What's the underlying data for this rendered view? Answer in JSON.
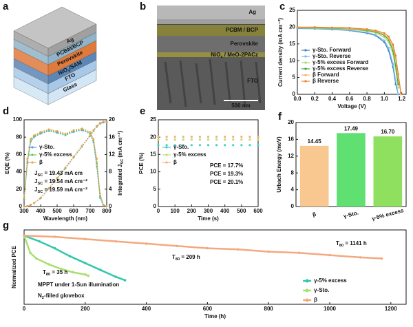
{
  "panels": {
    "a": {
      "label": "a",
      "layers": [
        "Ag",
        "PCBM/BCP",
        "Perovskite",
        [
          "NiO",
          "x",
          "/SAM"
        ],
        "FTO",
        "Glass"
      ]
    },
    "b": {
      "label": "b",
      "layers": [
        "Ag",
        "PCBM / BCP",
        "Perovskite",
        [
          "NiO",
          "x",
          " / MeO-2PACz"
        ],
        "FTO"
      ],
      "scale_bar": "500 nm"
    }
  },
  "chart_data": [
    {
      "panel_label": "c",
      "type": "line",
      "xlabel": "Voltage (V)",
      "ylabel": "Current density (mA cm⁻²)",
      "x": [
        0,
        0.2,
        0.4,
        0.6,
        0.8,
        0.9,
        1.0,
        1.05,
        1.1,
        1.13,
        1.16,
        1.19
      ],
      "xlim": [
        0,
        1.25
      ],
      "ylim": [
        0,
        25
      ],
      "xticks": [
        {
          "value": 0,
          "label": "0.0"
        },
        0.2,
        0.4,
        0.6,
        0.8,
        {
          "value": 1,
          "label": "1.0"
        },
        1.2
      ],
      "yticks": [
        0,
        5,
        10,
        15,
        20,
        25
      ],
      "legend": "lower left",
      "series": [
        {
          "name": "γ-Sto. Forward",
          "color": "#3b7fc4",
          "values": [
            19.6,
            19.5,
            19.3,
            19.0,
            18.2,
            17.5,
            15.5,
            13.0,
            8.0,
            3.0,
            0,
            null
          ]
        },
        {
          "name": "γ-Sto. Reverse",
          "color": "#7ab8e8",
          "values": [
            19.7,
            19.6,
            19.4,
            19.1,
            18.4,
            17.7,
            16.0,
            13.8,
            9.0,
            4.0,
            0,
            null
          ]
        },
        {
          "name": "γ-5% excess Forward",
          "color": "#a6d96a",
          "values": [
            19.8,
            19.7,
            19.6,
            19.4,
            18.8,
            18.3,
            17.0,
            15.5,
            12.0,
            7.5,
            2.0,
            null
          ]
        },
        {
          "name": "γ-5% excess Reverse",
          "color": "#3aa845",
          "values": [
            19.9,
            19.8,
            19.7,
            19.5,
            19.0,
            18.6,
            17.5,
            16.2,
            13.0,
            8.5,
            3.0,
            null
          ]
        },
        {
          "name": "β Forward",
          "color": "#f6b26b",
          "values": [
            19.9,
            19.9,
            19.8,
            19.6,
            19.2,
            18.8,
            17.8,
            16.6,
            14.0,
            10.5,
            5.0,
            0
          ]
        },
        {
          "name": "β Reverse",
          "color": "#e8822a",
          "values": [
            20.0,
            20.0,
            19.9,
            19.8,
            19.4,
            19.0,
            18.2,
            17.2,
            14.8,
            11.5,
            6.0,
            0.5
          ]
        }
      ]
    },
    {
      "panel_label": "d",
      "type": "line",
      "xlabel": "Wavelength (nm)",
      "ylabel": "EQE (%)",
      "y2label": [
        "Integrated J",
        "SC",
        " (mA cm⁻²)"
      ],
      "x": [
        300,
        320,
        340,
        360,
        400,
        450,
        500,
        550,
        600,
        650,
        700,
        720,
        740,
        760,
        780,
        800
      ],
      "xlim": [
        300,
        800
      ],
      "ylim": [
        0,
        100
      ],
      "y2lim": [
        0,
        20
      ],
      "xticks": [
        300,
        400,
        500,
        600,
        700,
        800
      ],
      "yticks": [
        0,
        20,
        40,
        60,
        80,
        100
      ],
      "y2ticks": [
        0,
        4,
        8,
        12,
        16,
        20
      ],
      "legend": "center left",
      "series": [
        {
          "name": "γ-Sto.",
          "color": "#5aa0e0",
          "values": [
            8,
            50,
            75,
            80,
            84,
            87,
            85,
            82,
            86,
            88,
            84,
            74,
            46,
            10,
            1,
            0
          ]
        },
        {
          "name": "γ-5% excess",
          "color": "#6cc84a",
          "values": [
            9,
            52,
            76,
            81,
            85,
            88,
            86,
            83,
            87,
            89,
            85,
            76,
            50,
            12,
            2,
            0
          ]
        },
        {
          "name": "β",
          "color": "#f0a050",
          "values": [
            10,
            55,
            78,
            82,
            86,
            89,
            87,
            84,
            88,
            90,
            86,
            78,
            55,
            15,
            2,
            0
          ]
        },
        {
          "axis": "y2",
          "color": "#5aa0e0",
          "values": [
            0,
            0.1,
            0.4,
            0.8,
            1.9,
            4.1,
            6.4,
            8.8,
            11.3,
            13.8,
            16.3,
            17.4,
            18.4,
            19.1,
            19.38,
            19.43
          ]
        },
        {
          "axis": "y2",
          "color": "#6cc84a",
          "values": [
            0,
            0.1,
            0.4,
            0.8,
            2.0,
            4.2,
            6.5,
            8.9,
            11.4,
            13.9,
            16.4,
            17.5,
            18.5,
            19.2,
            19.48,
            19.54
          ]
        },
        {
          "axis": "y2",
          "color": "#f0a050",
          "values": [
            0,
            0.1,
            0.4,
            0.8,
            2.0,
            4.2,
            6.6,
            9.0,
            11.5,
            14.0,
            16.5,
            17.6,
            18.6,
            19.3,
            19.55,
            19.59
          ]
        }
      ],
      "annotations": [
        {
          "text": [
            "J",
            "SC",
            " = 19.43 mA cm"
          ],
          "color": "#5aa0e0"
        },
        {
          "text": [
            "J",
            "SC",
            " = 19.54 mA cm⁻²"
          ],
          "color": "#6cc84a"
        },
        {
          "text": [
            "J",
            "SC",
            " = 19.59 mA cm⁻²"
          ],
          "color": "#f0a050"
        }
      ]
    },
    {
      "panel_label": "e",
      "type": "scatter",
      "xlabel": "Time (s)",
      "ylabel": "PCE (%)",
      "x": [
        0,
        50,
        100,
        150,
        200,
        250,
        300,
        350,
        400,
        450,
        500,
        550,
        600
      ],
      "xlim": [
        0,
        600
      ],
      "ylim": [
        0,
        25
      ],
      "xticks": [
        0,
        100,
        200,
        300,
        400,
        500,
        600
      ],
      "yticks": [
        0,
        5,
        10,
        15,
        20,
        25
      ],
      "legend": "center left",
      "series": [
        {
          "name": "γ-Sto.",
          "color": "#40d0c8",
          "values": [
            17.7,
            17.7,
            17.7,
            17.7,
            17.7,
            17.7,
            17.7,
            17.7,
            17.7,
            17.7,
            17.7,
            17.7,
            17.7
          ]
        },
        {
          "name": "γ-5% excess",
          "color": "#c8d870",
          "values": [
            19.3,
            19.3,
            19.3,
            19.3,
            19.3,
            19.3,
            19.3,
            19.3,
            19.3,
            19.3,
            19.3,
            19.3,
            19.3
          ]
        },
        {
          "name": "β",
          "color": "#f4b070",
          "values": [
            20.1,
            20.1,
            20.1,
            20.1,
            20.1,
            20.1,
            20.1,
            20.1,
            20.1,
            20.1,
            20.1,
            20.1,
            20.1
          ]
        }
      ],
      "annotations": [
        {
          "text": "PCE = 17.7%"
        },
        {
          "text": "PCE = 19.3%"
        },
        {
          "text": "PCE = 20.1%"
        }
      ]
    },
    {
      "panel_label": "f",
      "type": "bar",
      "ylabel": "Urbach Energy (meV)",
      "categories": [
        "β",
        "γ-Sto.",
        "γ-5% excess"
      ],
      "values": [
        14.45,
        17.49,
        16.7
      ],
      "value_labels": [
        "14.45",
        "17.49",
        "16.70"
      ],
      "colors": [
        "#f8c890",
        "#60e070",
        "#90e060"
      ],
      "ylim": [
        0,
        20
      ],
      "yticks": [
        0,
        4,
        8,
        12,
        16,
        20
      ]
    },
    {
      "panel_label": "g",
      "type": "line",
      "xlabel": "Time (h)",
      "ylabel": "Normalized PCE",
      "xlim": [
        0,
        1250
      ],
      "ylim": [
        0.4,
        1.05
      ],
      "xticks": [
        0,
        200,
        400,
        600,
        800,
        1000,
        1200
      ],
      "legend": "lower right",
      "series": [
        {
          "name": "γ-5% excess",
          "color": "#30c8a8",
          "x": [
            0,
            50,
            100,
            150,
            200,
            250,
            300,
            330
          ],
          "values": [
            1.0,
            0.95,
            0.89,
            0.82,
            0.76,
            0.7,
            0.64,
            0.61
          ]
        },
        {
          "name": "γ-Sto.",
          "color": "#a8e070",
          "x": [
            0,
            20,
            40,
            80,
            120,
            160,
            200,
            210
          ],
          "values": [
            1.0,
            0.85,
            0.8,
            0.75,
            0.71,
            0.68,
            0.66,
            0.65
          ]
        },
        {
          "name": "β",
          "color": "#f4a880",
          "x": [
            0,
            100,
            200,
            300,
            400,
            500,
            600,
            700,
            800,
            900,
            1000,
            1100,
            1170
          ],
          "values": [
            1.0,
            0.99,
            0.97,
            0.95,
            0.93,
            0.91,
            0.89,
            0.88,
            0.86,
            0.85,
            0.83,
            0.81,
            0.8
          ]
        }
      ],
      "annotations": [
        {
          "text": [
            "T",
            "80",
            " = 1141 h"
          ]
        },
        {
          "text": [
            "T",
            "80",
            " = 209 h"
          ]
        },
        {
          "text": [
            "T",
            "80",
            " = 35 h"
          ]
        },
        {
          "text": "MPPT under 1-Sun illumination"
        },
        {
          "text": [
            "N",
            "2",
            "-filled glovebox"
          ]
        }
      ]
    }
  ]
}
